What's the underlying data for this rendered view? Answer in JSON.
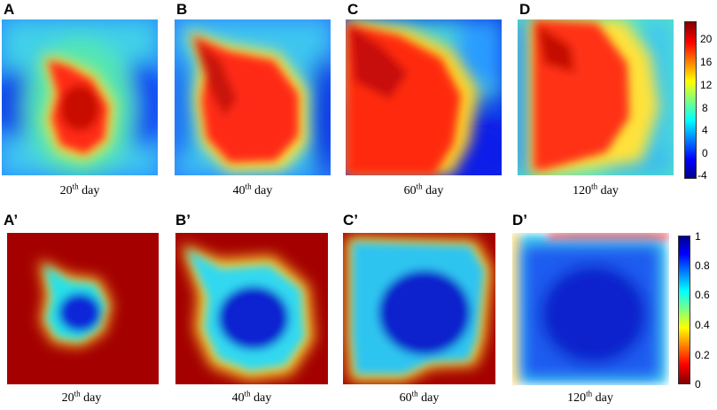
{
  "rows": [
    {
      "name": "row-top",
      "panels": [
        {
          "letter": "A",
          "day_num": "20",
          "day_sup": "th",
          "day_word": " day"
        },
        {
          "letter": "B",
          "day_num": "40",
          "day_sup": "th",
          "day_word": " day"
        },
        {
          "letter": "C",
          "day_num": "60",
          "day_sup": "th",
          "day_word": " day"
        },
        {
          "letter": "D",
          "day_num": "120",
          "day_sup": "th",
          "day_word": " day"
        }
      ],
      "colorbar": {
        "ticks": [
          "20",
          "16",
          "12",
          "8",
          "4",
          "0",
          "-4"
        ],
        "scale": "jet"
      }
    },
    {
      "name": "row-bottom",
      "panels": [
        {
          "letter": "A’",
          "day_num": "20",
          "day_sup": "th",
          "day_word": " day"
        },
        {
          "letter": "B’",
          "day_num": "40",
          "day_sup": "th",
          "day_word": " day"
        },
        {
          "letter": "C’",
          "day_num": "60",
          "day_sup": "th",
          "day_word": " day"
        },
        {
          "letter": "D’",
          "day_num": "120",
          "day_sup": "th",
          "day_word": " day"
        }
      ],
      "colorbar": {
        "ticks": [
          "1",
          "0.8",
          "0.6",
          "0.4",
          "0.2",
          "0"
        ],
        "scale": "jet"
      }
    }
  ]
}
